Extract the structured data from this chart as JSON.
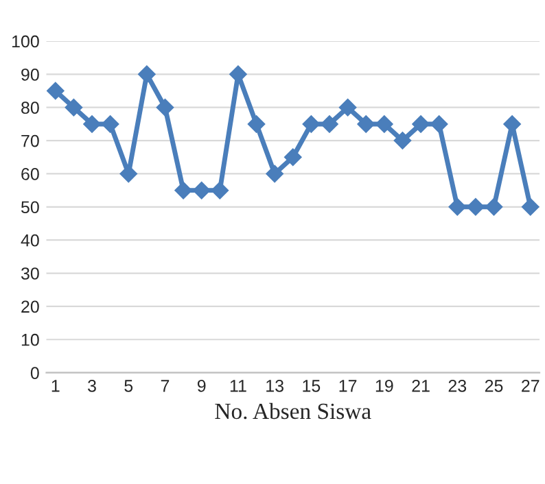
{
  "chart_data": {
    "type": "line",
    "xlabel": "No. Absen Siswa",
    "categories": [
      "1",
      null,
      "3",
      null,
      "5",
      null,
      "7",
      null,
      "9",
      null,
      "11",
      null,
      "13",
      null,
      "15",
      null,
      "17",
      null,
      "19",
      null,
      "21",
      null,
      "23",
      null,
      "25",
      null,
      "27"
    ],
    "series": [
      {
        "color": "#4a7ebb",
        "values": [
          85,
          80,
          75,
          75,
          60,
          90,
          80,
          55,
          55,
          55,
          90,
          75,
          60,
          65,
          75,
          75,
          80,
          75,
          75,
          70,
          75,
          75,
          50,
          50,
          50,
          75,
          50
        ]
      }
    ],
    "ylim": [
      0,
      100
    ],
    "yticks": [
      0,
      10,
      20,
      30,
      40,
      50,
      60,
      70,
      80,
      90,
      100
    ],
    "grid": "y",
    "marker": "diamond",
    "line_style": "solid"
  }
}
